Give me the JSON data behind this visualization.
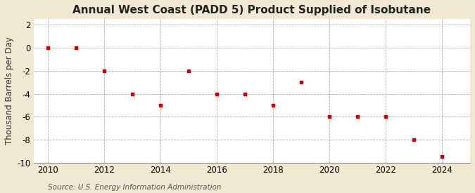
{
  "title": "Annual West Coast (PADD 5) Product Supplied of Isobutane",
  "ylabel": "Thousand Barrels per Day",
  "source": "Source: U.S. Energy Information Administration",
  "outer_bg": "#f0e8d0",
  "inner_bg": "#ffffff",
  "years": [
    2010,
    2011,
    2012,
    2013,
    2014,
    2015,
    2016,
    2017,
    2018,
    2019,
    2020,
    2021,
    2022,
    2023,
    2024
  ],
  "values": [
    0,
    0,
    -2,
    -4,
    -5,
    -2,
    -4,
    -4,
    -5,
    -3,
    -6,
    -6,
    -6,
    -8,
    -9.5
  ],
  "marker_color": "#cc0000",
  "marker": "s",
  "marker_size": 3.5,
  "xlim": [
    2009.5,
    2025
  ],
  "ylim": [
    -10,
    2.5
  ],
  "yticks": [
    2,
    0,
    -2,
    -4,
    -6,
    -8,
    -10
  ],
  "xticks": [
    2010,
    2012,
    2014,
    2016,
    2018,
    2020,
    2022,
    2024
  ],
  "title_fontsize": 11,
  "ylabel_fontsize": 8.5,
  "tick_fontsize": 8.5,
  "source_fontsize": 7.5,
  "grid_color": "#aaaaaa",
  "grid_linestyle": "--",
  "grid_linewidth": 0.6
}
